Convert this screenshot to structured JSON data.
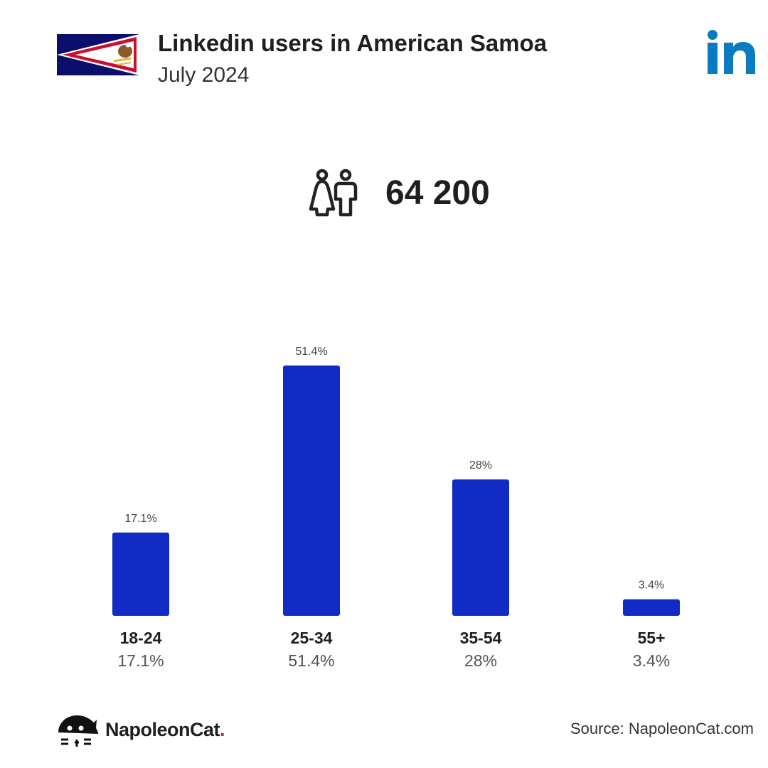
{
  "header": {
    "title": "Linkedin users in American Samoa",
    "subtitle": "July 2024"
  },
  "total": {
    "value": "64 200",
    "icon": "people-icon"
  },
  "colors": {
    "bar": "#102cc4",
    "linkedin": "#0a7bc1",
    "brand_dot": "#e0262b"
  },
  "chart_data": {
    "type": "bar",
    "categories": [
      "18-24",
      "25-34",
      "35-54",
      "55+"
    ],
    "values": [
      17.1,
      51.4,
      28,
      3.4
    ],
    "value_labels": [
      "17.1%",
      "51.4%",
      "28%",
      "3.4%"
    ],
    "title": "",
    "xlabel": "",
    "ylabel": "",
    "ylim": [
      0,
      51.4
    ],
    "grid": false
  },
  "footer": {
    "brand_name": "NapoleonCat",
    "brand_dot": ".",
    "source": "Source: NapoleonCat.com"
  }
}
